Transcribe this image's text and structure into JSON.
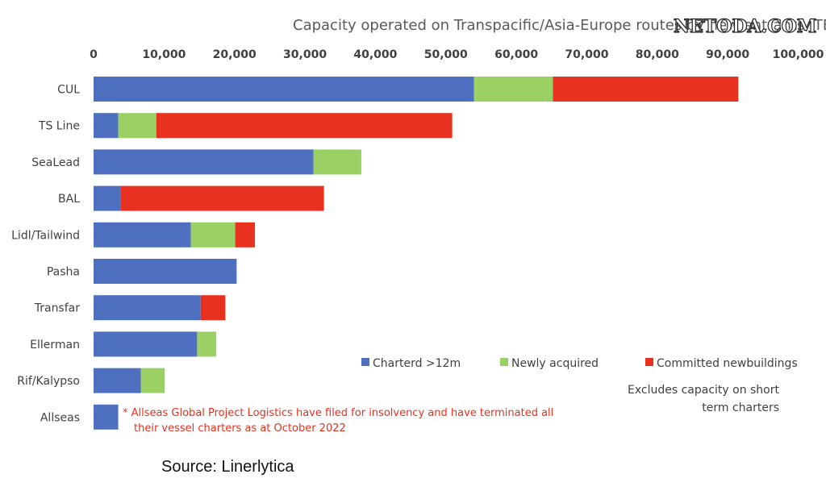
{
  "chart_data": {
    "type": "bar",
    "orientation": "horizontal",
    "stacked": true,
    "title": "Capacity operated on Transpacific/Asia-Europe routes by new entrants, TEU",
    "categories": [
      "CUL",
      "TS Line",
      "SeaLead",
      "BAL",
      "Lidl/Tailwind",
      "Pasha",
      "Transfar",
      "Ellerman",
      "Rif/Kalypso",
      "Allseas"
    ],
    "series": [
      {
        "name": "Charterd >12m",
        "color": "#4f6fc0",
        "values": [
          54000,
          3500,
          31200,
          3800,
          13800,
          20300,
          15200,
          14700,
          6700,
          3500
        ]
      },
      {
        "name": "Newly acquired",
        "color": "#9bd164",
        "values": [
          11200,
          5400,
          6800,
          0,
          6300,
          0,
          0,
          2700,
          3400,
          0
        ]
      },
      {
        "name": "Committed newbuildings",
        "color": "#e8311f",
        "values": [
          26300,
          42000,
          0,
          28900,
          2800,
          0,
          3500,
          0,
          0,
          0
        ]
      }
    ],
    "xlim": [
      0,
      100000
    ],
    "xticks": [
      0,
      10000,
      20000,
      30000,
      40000,
      50000,
      60000,
      70000,
      80000,
      90000,
      100000
    ],
    "xtick_labels": [
      "0",
      "10,000",
      "20,000",
      "30,000",
      "40,000",
      "50,000",
      "60,000",
      "70,000",
      "80,000",
      "90,000",
      "100,000"
    ],
    "x_axis_position": "top",
    "grid": false,
    "legend_position": "bottom-right",
    "note": [
      "Excludes capacity on short",
      "term charters"
    ],
    "footnote": [
      "*  Allseas Global Project Logistics have filed for insolvency and have terminated all",
      "their vessel charters as at October 2022"
    ],
    "source": "Source: Linerlytica"
  },
  "watermark": "NETODA.COM"
}
